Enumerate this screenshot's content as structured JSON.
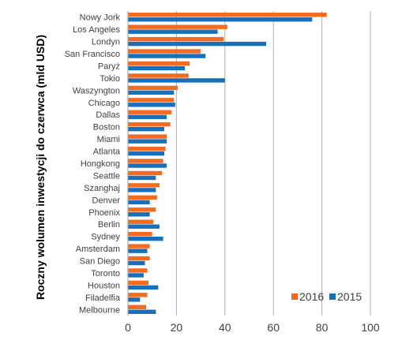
{
  "chart_data": {
    "type": "bar",
    "orientation": "horizontal",
    "title": "",
    "xlabel": "",
    "ylabel": "Roczny wolumen inwestycji do czerwca (mld USD)",
    "xlim": [
      0,
      100
    ],
    "xticks": [
      0,
      20,
      40,
      60,
      80,
      100
    ],
    "grid": true,
    "legend_position": "bottom-right",
    "categories": [
      "Nowy Jork",
      "Los Angeles",
      "Londyn",
      "San Francisco",
      "Paryż",
      "Tokio",
      "Waszyngton",
      "Chicago",
      "Dallas",
      "Boston",
      "Miami",
      "Atlanta",
      "Hongkong",
      "Seattle",
      "Szanghaj",
      "Denver",
      "Phoenix",
      "Berlin",
      "Sydney",
      "Amsterdam",
      "San Diego",
      "Toronto",
      "Houston",
      "Filadelfia",
      "Melbourne"
    ],
    "series": [
      {
        "name": "2016",
        "color": "#f26b21",
        "values": [
          82,
          41,
          39.5,
          30,
          25.5,
          25,
          20.5,
          19,
          18,
          17.5,
          16,
          15.5,
          14.5,
          14,
          13,
          12,
          11.5,
          10.5,
          10,
          9,
          9,
          8,
          8.5,
          8,
          7.5
        ]
      },
      {
        "name": "2015",
        "color": "#1a6fba",
        "values": [
          76,
          37,
          57,
          32,
          23.5,
          40,
          19,
          19.5,
          16,
          15,
          16,
          15,
          16,
          11.5,
          11.5,
          9,
          9,
          13,
          14.5,
          8,
          7,
          6.5,
          12.5,
          5,
          11.5
        ]
      }
    ]
  }
}
